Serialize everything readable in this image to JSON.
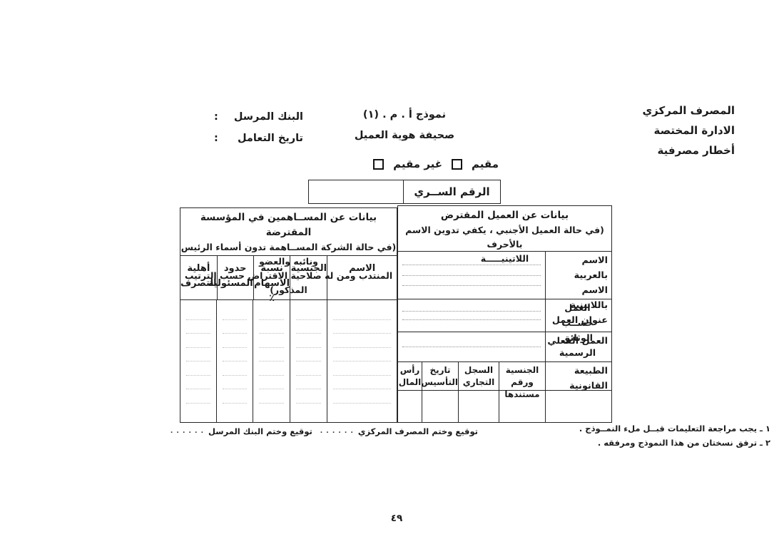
{
  "header": {
    "right_lines": [
      "المصرف المركزي",
      "الادارة المختصة",
      "أخطار مصرفية"
    ],
    "form_number": "نموذج أ . م . (١)",
    "form_title": "صحيفة هوية العميل",
    "sending_bank_label": "البنك المرسل",
    "transaction_date_label": "تاريخ التعامل",
    "colon": ":"
  },
  "residency": {
    "resident_label": "مقيم",
    "non_resident_label": "غير مقيم"
  },
  "secret_number": {
    "label": "الرقم الســري",
    "value": ""
  },
  "borrower_table": {
    "title": "بيانات عن العميل المقترض",
    "subtitle_line1": "(في حالة العميل الأجنبي ، يكفي تدوين الاسم بالأحرف",
    "subtitle_line2": "اللاتينيـــــة",
    "name_row_labels": [
      "الاسم بالعربية",
      "الاسم باللاتينية",
      "عنوان العمل"
    ],
    "work_documents_label_line1": "العمل حســب",
    "work_documents_label_line2": "الوثائق الرسمية",
    "actual_work_label": "العمل الفعلي",
    "legal_nature_label": "الطبيعة القانونية",
    "sub_headers": [
      {
        "line1": "الجنسية",
        "line2": "ورقم مستندها"
      },
      {
        "line1": "السجل",
        "line2": "التجاري"
      },
      {
        "line1": "تاريخ",
        "line2": "التأسيس"
      },
      {
        "line1": "رأس",
        "line2": "المال"
      }
    ]
  },
  "shareholders_table": {
    "title": "بيانات عن المســاهمين في المؤسسة المقترضة",
    "subtitle_line1": "(في حالة الشركة المســاهمة تدون أسماء الرئيس ونائبه والعضو",
    "subtitle_line2": "المنتدب ومن له صلاحية الاقتراض حسب الترتيب المذكور)",
    "columns": [
      {
        "line1": "الاسم",
        "line2": ""
      },
      {
        "line1": "الجنسية",
        "line2": ""
      },
      {
        "line1": "نسبة",
        "line2": "الاسهام ٪"
      },
      {
        "line1": "حدود",
        "line2": "المسئولية"
      },
      {
        "line1": "أهلية",
        "line2": "التصرف"
      }
    ]
  },
  "footer": {
    "note1": "١ ـ يجب مراجعة التعليمات قبــل ملء النمــوذج .",
    "note2": "٢ ـ ترفق نسختان من هذا النموذج ومرفقه .",
    "central_bank_signature_label": "توقيع وختم المصرف المركزي",
    "sending_bank_signature_label": "توقيع وختم البنك المرسل",
    "signature_dots": ". . . . . . . . . . . . . . . . .",
    "page_number": "٤٩"
  },
  "colors": {
    "paper": "#ffffff",
    "ink": "#1b1b1b",
    "border": "#262626",
    "dotted_line": "#8f8f8f"
  }
}
